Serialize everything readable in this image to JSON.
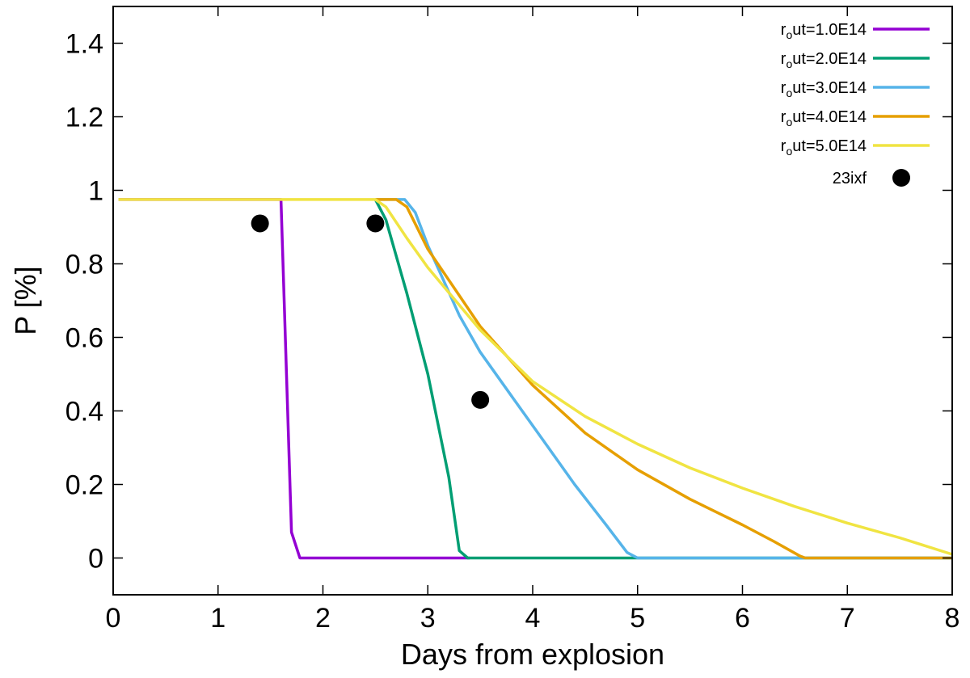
{
  "chart_data": {
    "type": "line",
    "xlabel": "Days from explosion",
    "ylabel": "P [%]",
    "xlim": [
      0,
      8
    ],
    "ylim": [
      -0.1,
      1.5
    ],
    "x_ticks": [
      0,
      1,
      2,
      3,
      4,
      5,
      6,
      7,
      8
    ],
    "x_tick_labels": [
      "0",
      "1",
      "2",
      "3",
      "4",
      "5",
      "6",
      "7",
      "8"
    ],
    "y_ticks": [
      0,
      0.2,
      0.4,
      0.6,
      0.8,
      1,
      1.2,
      1.4
    ],
    "y_tick_labels": [
      "0",
      "0.2",
      "0.4",
      "0.6",
      "0.8",
      "1",
      "1.2",
      "1.4"
    ],
    "grid": false,
    "legend_position": "top-right",
    "series": [
      {
        "name": "r_out=1.0E14",
        "label_main": "r",
        "label_sub": "o",
        "label_rest": "ut=1.0E14",
        "color": "#9400d3",
        "points": [
          [
            0.05,
            0.975
          ],
          [
            1.6,
            0.975
          ],
          [
            1.7,
            0.07
          ],
          [
            1.78,
            0.0
          ],
          [
            3.4,
            0.0
          ]
        ]
      },
      {
        "name": "r_out=2.0E14",
        "label_main": "r",
        "label_sub": "o",
        "label_rest": "ut=2.0E14",
        "color": "#009e73",
        "points": [
          [
            2.5,
            0.975
          ],
          [
            2.6,
            0.92
          ],
          [
            2.8,
            0.72
          ],
          [
            3.0,
            0.5
          ],
          [
            3.2,
            0.22
          ],
          [
            3.3,
            0.02
          ],
          [
            3.38,
            0.0
          ],
          [
            8.0,
            0.0
          ]
        ]
      },
      {
        "name": "r_out=3.0E14",
        "label_main": "r",
        "label_sub": "o",
        "label_rest": "ut=3.0E14",
        "color": "#56b4e9",
        "points": [
          [
            2.5,
            0.975
          ],
          [
            2.78,
            0.975
          ],
          [
            2.88,
            0.94
          ],
          [
            3.0,
            0.85
          ],
          [
            3.3,
            0.66
          ],
          [
            3.5,
            0.56
          ],
          [
            3.8,
            0.44
          ],
          [
            4.1,
            0.32
          ],
          [
            4.4,
            0.2
          ],
          [
            4.7,
            0.09
          ],
          [
            4.9,
            0.015
          ],
          [
            5.0,
            0.0
          ],
          [
            8.0,
            0.0
          ]
        ]
      },
      {
        "name": "r_out=4.0E14",
        "label_main": "r",
        "label_sub": "o",
        "label_rest": "ut=4.0E14",
        "color": "#e69f00",
        "points": [
          [
            2.5,
            0.975
          ],
          [
            2.7,
            0.975
          ],
          [
            2.8,
            0.955
          ],
          [
            3.0,
            0.84
          ],
          [
            3.5,
            0.63
          ],
          [
            4.0,
            0.47
          ],
          [
            4.5,
            0.34
          ],
          [
            5.0,
            0.24
          ],
          [
            5.5,
            0.16
          ],
          [
            6.0,
            0.09
          ],
          [
            6.3,
            0.045
          ],
          [
            6.55,
            0.005
          ],
          [
            6.6,
            0.0
          ],
          [
            8.0,
            0.0
          ]
        ]
      },
      {
        "name": "r_out=5.0E14",
        "label_main": "r",
        "label_sub": "o",
        "label_rest": "ut=5.0E14",
        "color": "#f0e442",
        "points": [
          [
            0.05,
            0.975
          ],
          [
            2.5,
            0.975
          ],
          [
            2.6,
            0.955
          ],
          [
            2.8,
            0.87
          ],
          [
            3.0,
            0.79
          ],
          [
            3.5,
            0.62
          ],
          [
            4.0,
            0.48
          ],
          [
            4.5,
            0.385
          ],
          [
            5.0,
            0.31
          ],
          [
            5.5,
            0.245
          ],
          [
            6.0,
            0.19
          ],
          [
            6.5,
            0.14
          ],
          [
            7.0,
            0.095
          ],
          [
            7.5,
            0.055
          ],
          [
            8.0,
            0.01
          ]
        ]
      }
    ],
    "observations": {
      "name": "23ixf",
      "color": "#000000",
      "points": [
        [
          1.4,
          0.91
        ],
        [
          2.5,
          0.91
        ],
        [
          3.5,
          0.43
        ]
      ]
    }
  }
}
